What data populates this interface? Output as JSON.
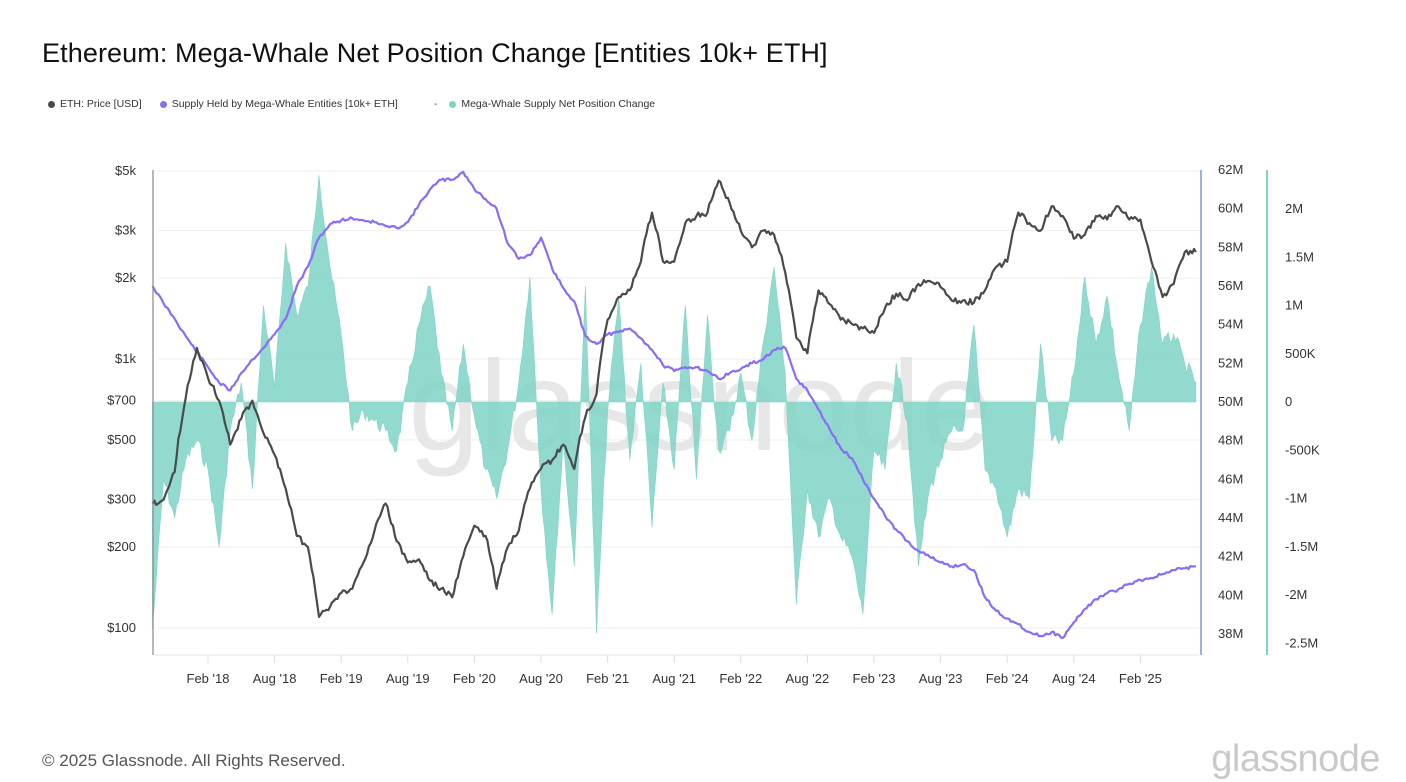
{
  "header": {
    "title": "Ethereum: Mega-Whale Net Position Change [Entities 10k+ ETH]"
  },
  "legend": {
    "items": [
      {
        "label": "ETH: Price [USD]",
        "color": "#4a4a4a"
      },
      {
        "label": "Supply Held by Mega-Whale Entities [10k+ ETH]",
        "color": "#8b6cf6"
      },
      {
        "label": "Mega-Whale Supply Net Position Change",
        "color": "#7fd3c6"
      }
    ],
    "separator": "-"
  },
  "footer": {
    "copyright": "© 2025 Glassnode. All Rights Reserved.",
    "brand": "glassnode"
  },
  "watermark": "glassnode",
  "chart_data": {
    "type": "line",
    "title": "Ethereum: Mega-Whale Net Position Change [Entities 10k+ ETH]",
    "x_start": "2017-09",
    "x_end": "2025-07",
    "x_interval": "monthly",
    "x_tick_labels": [
      "Feb '18",
      "Aug '18",
      "Feb '19",
      "Aug '19",
      "Feb '20",
      "Aug '20",
      "Feb '21",
      "Aug '21",
      "Feb '22",
      "Aug '22",
      "Feb '23",
      "Aug '23",
      "Feb '24",
      "Aug '24",
      "Feb '25"
    ],
    "axes": {
      "price": {
        "scale": "log",
        "range": [
          80,
          5000
        ],
        "tick_labels": [
          "$5k",
          "$3k",
          "$2k",
          "$1k",
          "$700",
          "$500",
          "$300",
          "$200",
          "$100"
        ],
        "tick_values": [
          5000,
          3000,
          2000,
          1000,
          700,
          500,
          300,
          200,
          100
        ]
      },
      "supply": {
        "scale": "linear",
        "range": [
          37,
          62
        ],
        "unit": "M",
        "tick_labels": [
          "62M",
          "60M",
          "58M",
          "56M",
          "54M",
          "52M",
          "50M",
          "48M",
          "46M",
          "44M",
          "42M",
          "40M",
          "38M"
        ],
        "tick_values": [
          62,
          60,
          58,
          56,
          54,
          52,
          50,
          48,
          46,
          44,
          42,
          40,
          38
        ]
      },
      "net_change": {
        "scale": "linear",
        "range": [
          -2500,
          2450
        ],
        "unit": "K",
        "tick_labels": [
          "2M",
          "1.5M",
          "1M",
          "500K",
          "0",
          "-500K",
          "-1M",
          "-1.5M",
          "-2M",
          "-2.5M"
        ],
        "tick_values": [
          2000,
          1500,
          1000,
          500,
          0,
          -500,
          -1000,
          -1500,
          -2000,
          -2500
        ]
      }
    },
    "grid": true,
    "legend_position": "top-left",
    "series": [
      {
        "name": "ETH: Price [USD]",
        "axis": "price",
        "color": "#4a4a4a",
        "values": [
          290,
          300,
          380,
          720,
          1100,
          850,
          700,
          480,
          600,
          700,
          530,
          440,
          330,
          220,
          200,
          110,
          120,
          135,
          140,
          175,
          230,
          290,
          210,
          175,
          180,
          150,
          140,
          130,
          185,
          240,
          220,
          140,
          200,
          230,
          330,
          390,
          420,
          480,
          390,
          610,
          740,
          1400,
          1700,
          1800,
          2300,
          3500,
          2300,
          2300,
          3200,
          3400,
          3500,
          4600,
          3800,
          3000,
          2600,
          3000,
          2900,
          2100,
          1200,
          1050,
          1800,
          1600,
          1400,
          1350,
          1300,
          1250,
          1550,
          1750,
          1650,
          1900,
          1950,
          1850,
          1650,
          1650,
          1620,
          1800,
          2200,
          2300,
          3500,
          3200,
          3000,
          3700,
          3400,
          2800,
          2900,
          3400,
          3300,
          3700,
          3300,
          3300,
          2300,
          1700,
          1900,
          2500,
          2500
        ]
      },
      {
        "name": "Supply Held by Mega-Whale Entities [10k+ ETH]",
        "axis": "supply",
        "color": "#8b6cf6",
        "values": [
          56.0,
          55.1,
          54.3,
          53.4,
          52.6,
          51.8,
          51.0,
          50.6,
          51.5,
          52.2,
          52.8,
          53.5,
          54.3,
          56.0,
          57.0,
          58.5,
          59.2,
          59.4,
          59.5,
          59.4,
          59.3,
          59.1,
          59.0,
          59.3,
          60.2,
          61.0,
          61.5,
          61.5,
          61.9,
          61.0,
          60.5,
          60.0,
          58.2,
          57.4,
          57.6,
          58.5,
          56.9,
          55.9,
          55.2,
          53.4,
          53.0,
          53.5,
          53.6,
          53.8,
          53.3,
          52.7,
          51.9,
          51.6,
          51.8,
          51.8,
          51.6,
          51.2,
          51.5,
          51.7,
          52.0,
          52.2,
          52.7,
          52.8,
          51.2,
          50.6,
          49.6,
          48.6,
          47.6,
          47.1,
          46.0,
          45.0,
          44.1,
          43.4,
          42.8,
          42.3,
          42.0,
          41.7,
          41.5,
          41.6,
          41.3,
          39.9,
          39.2,
          38.8,
          38.5,
          38.1,
          37.9,
          38.1,
          37.8,
          38.6,
          39.3,
          39.8,
          40.1,
          40.3,
          40.6,
          40.8,
          40.9,
          41.1,
          41.3,
          41.4,
          41.5
        ]
      },
      {
        "name": "Mega-Whale Supply Net Position Change",
        "axis": "net_change",
        "color": "#7fd3c6",
        "values": [
          -2350,
          -800,
          -1200,
          -600,
          -400,
          -700,
          -1500,
          -300,
          200,
          -900,
          1000,
          150,
          1650,
          900,
          1200,
          2350,
          1400,
          700,
          -300,
          -100,
          -200,
          -300,
          -500,
          200,
          800,
          1200,
          300,
          -300,
          600,
          -150,
          -700,
          -1000,
          -500,
          200,
          1300,
          -900,
          -2200,
          -400,
          -1700,
          1200,
          -2400,
          -100,
          1100,
          -600,
          400,
          -1300,
          200,
          -700,
          1000,
          -800,
          900,
          -500,
          -300,
          300,
          -400,
          600,
          1400,
          300,
          -2100,
          -900,
          -1400,
          -1000,
          -1400,
          -1600,
          -2200,
          -500,
          -700,
          400,
          -200,
          -1700,
          -900,
          -600,
          -300,
          -300,
          800,
          -700,
          -900,
          -1400,
          -900,
          -1000,
          600,
          -400,
          -400,
          300,
          1300,
          600,
          1100,
          300,
          -300,
          800,
          1400,
          600,
          700,
          400,
          200
        ]
      }
    ]
  }
}
